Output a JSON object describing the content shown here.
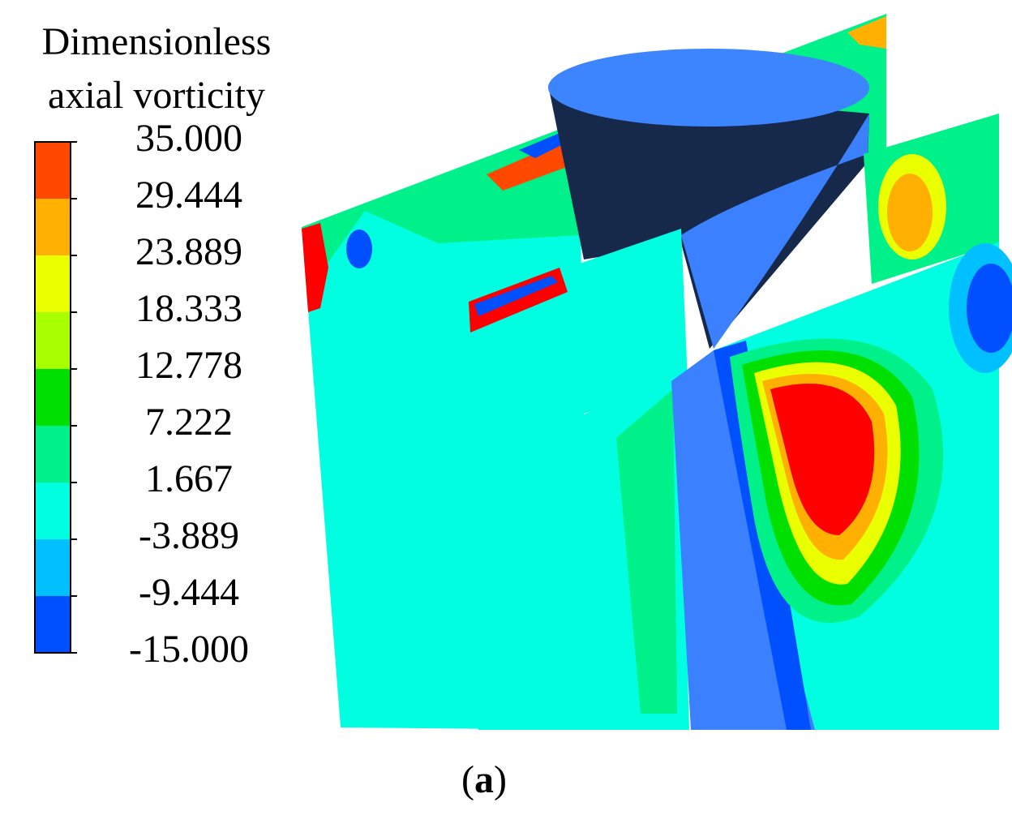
{
  "legend": {
    "title_lines": [
      "Dimensionless",
      "axial vorticity"
    ],
    "labels": [
      "35.000",
      "29.444",
      "23.889",
      "18.333",
      "12.778",
      "7.222",
      "1.667",
      "-3.889",
      "-9.444",
      "-15.000"
    ],
    "colors": [
      "#ff4800",
      "#ffb000",
      "#eaff00",
      "#a8ff00",
      "#00e000",
      "#00f08a",
      "#00ffe0",
      "#00c0ff",
      "#0050ff"
    ]
  },
  "caption": [
    "(",
    "a",
    ")"
  ]
}
